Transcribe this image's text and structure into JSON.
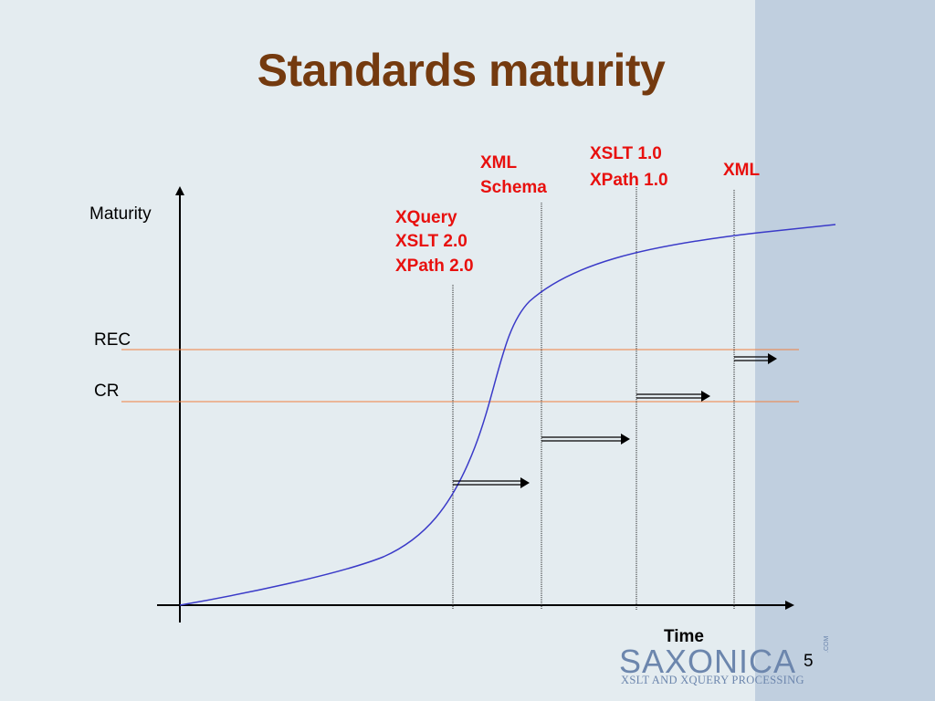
{
  "slide": {
    "title": "Standards maturity",
    "page_number": "5"
  },
  "axes": {
    "y_label": "Maturity",
    "x_label": "Time"
  },
  "levels": [
    {
      "name": "REC",
      "color": "#f08040"
    },
    {
      "name": "CR",
      "color": "#f08040"
    }
  ],
  "milestones": [
    {
      "lines": [
        "XQuery",
        "XSLT 2.0",
        "XPath 2.0"
      ]
    },
    {
      "lines": [
        "XML",
        "Schema"
      ]
    },
    {
      "lines": [
        "XSLT 1.0",
        "XPath 1.0"
      ]
    },
    {
      "lines": [
        "XML"
      ]
    }
  ],
  "logo": {
    "wordmark": "SAXONICA",
    "suffix": ".COM",
    "tagline": "XSLT AND XQUERY PROCESSING"
  },
  "colors": {
    "title": "#743a0f",
    "milestone_label": "#e8100e",
    "curve": "#3a3ac8",
    "level_line": "#f08040",
    "logo": "#6c86ad"
  }
}
